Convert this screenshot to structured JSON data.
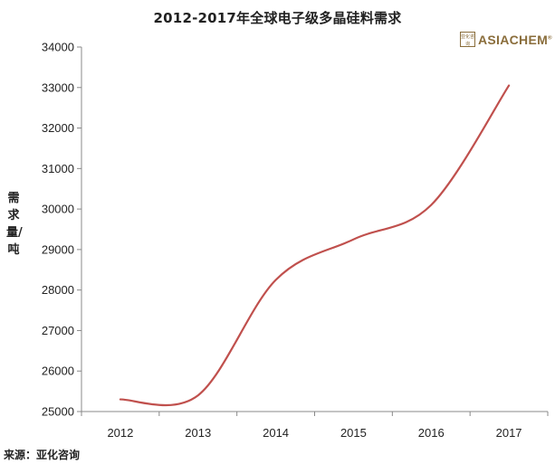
{
  "chart_data": {
    "type": "line",
    "title": "2012-2017年全球电子级多晶硅料需求",
    "xlabel": "",
    "ylabel": "需求量/吨",
    "categories": [
      "2012",
      "2013",
      "2014",
      "2015",
      "2016",
      "2017"
    ],
    "series": [
      {
        "values": [
          25300,
          25400,
          28250,
          29250,
          30100,
          33050
        ],
        "color": "#c0504d"
      }
    ],
    "ylim": [
      25000,
      34000
    ],
    "yticks": [
      25000,
      26000,
      27000,
      28000,
      29000,
      30000,
      31000,
      32000,
      33000,
      34000
    ],
    "grid": false,
    "smooth": true,
    "source": "来源：亚化咨询",
    "logo_text": "ASIACHEM",
    "logo_seal": "亚化咨询"
  }
}
